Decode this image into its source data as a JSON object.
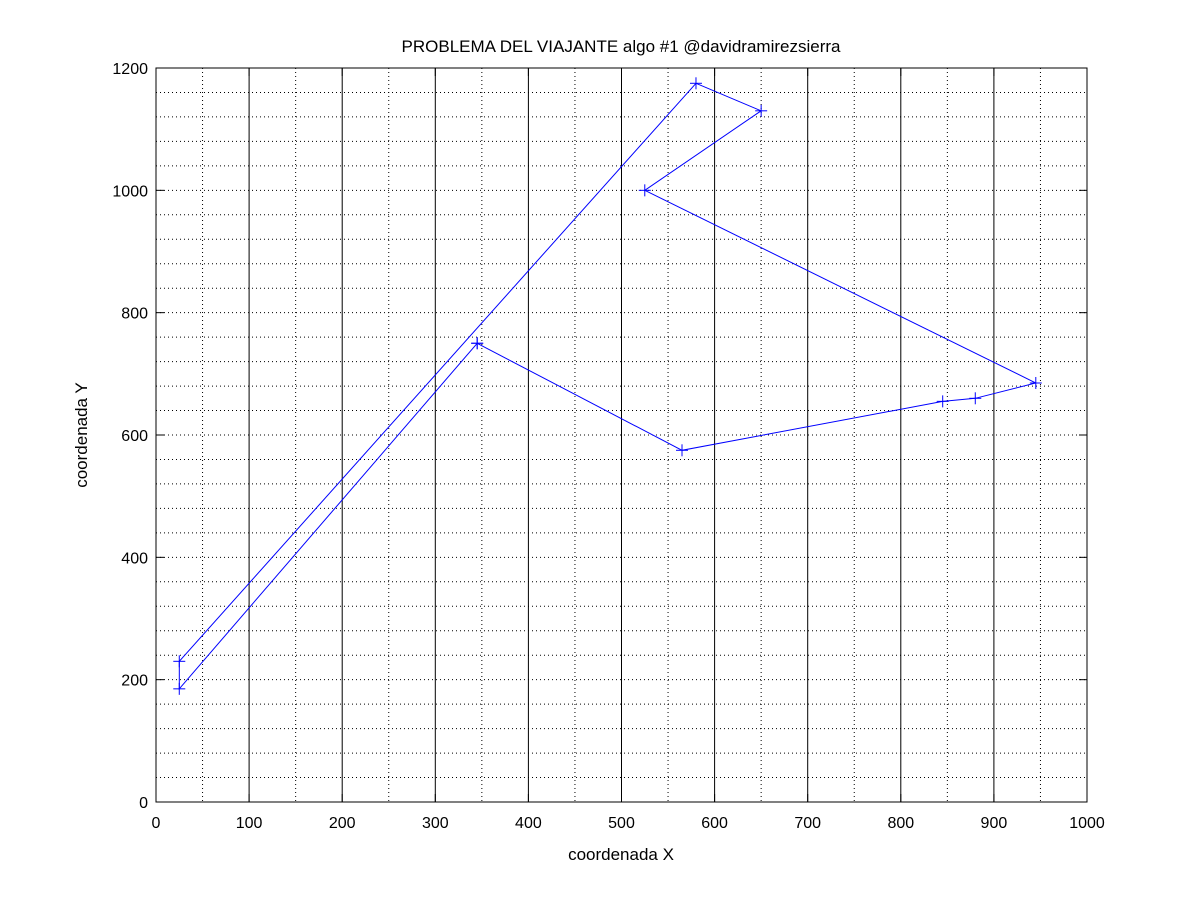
{
  "chart_data": {
    "type": "line",
    "title": "PROBLEMA DEL VIAJANTE algo #1 @davidramirezsierra",
    "xlabel": "coordenada X",
    "ylabel": "coordenada Y",
    "xlim": [
      0,
      1000
    ],
    "ylim": [
      0,
      1200
    ],
    "xticks": [
      "0",
      "100",
      "200",
      "300",
      "400",
      "500",
      "600",
      "700",
      "800",
      "900",
      "1000"
    ],
    "yticks": [
      "0",
      "200",
      "400",
      "600",
      "800",
      "1000",
      "1200"
    ],
    "grid": true,
    "marker": "plus",
    "line_color": "#0000ff",
    "series": [
      {
        "x": [
          345,
          565,
          845,
          880,
          945,
          525,
          650,
          580,
          25,
          25,
          345
        ],
        "y": [
          750,
          575,
          655,
          660,
          685,
          1000,
          1130,
          1175,
          230,
          185,
          750
        ]
      }
    ]
  }
}
